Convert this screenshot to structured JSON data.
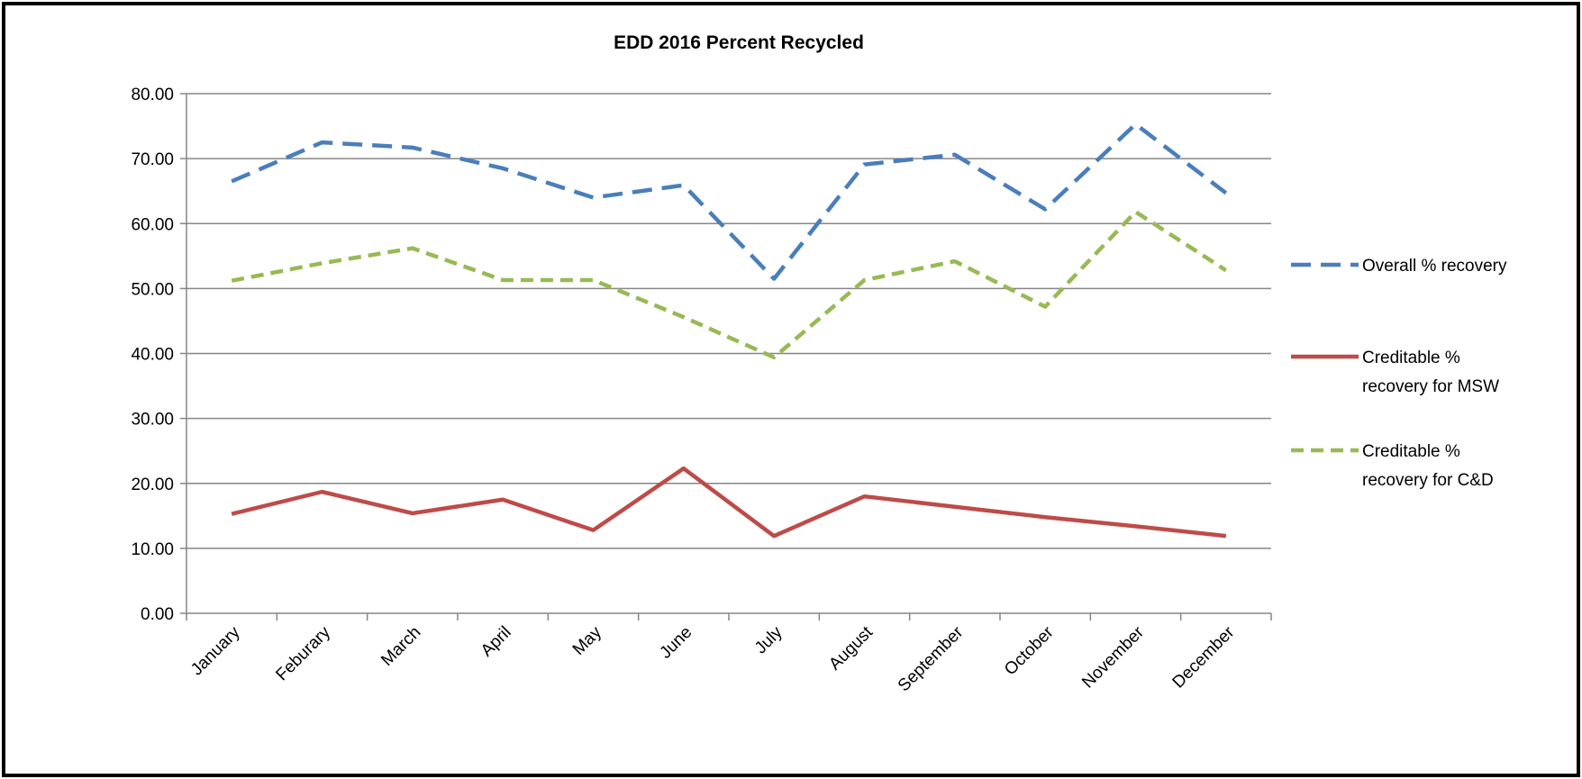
{
  "chart_data": {
    "type": "line",
    "title": "EDD 2016 Percent Recycled",
    "xlabel": "",
    "ylabel": "",
    "categories": [
      "January",
      "Feburary",
      "March",
      "April",
      "May",
      "June",
      "July",
      "August",
      "September",
      "October",
      "November",
      "December"
    ],
    "ylim": [
      0,
      80
    ],
    "yticks": [
      "0.00",
      "10.00",
      "20.00",
      "30.00",
      "40.00",
      "50.00",
      "60.00",
      "70.00",
      "80.00"
    ],
    "grid": true,
    "legend_position": "right",
    "series": [
      {
        "name": "Overall % recovery",
        "legend_lines": [
          "Overall % recovery"
        ],
        "color": "#4a7ebb",
        "style": "dashed",
        "values": [
          66.5,
          72.5,
          71.7,
          68.5,
          64.0,
          65.9,
          51.5,
          69.1,
          70.6,
          62.2,
          75.3,
          64.7
        ]
      },
      {
        "name": "Creditable % recovery for MSW",
        "legend_lines": [
          "Creditable %",
          "recovery for MSW"
        ],
        "color": "#be4b48",
        "style": "solid",
        "values": [
          15.3,
          18.7,
          15.4,
          17.5,
          12.8,
          22.3,
          11.9,
          18.0,
          16.4,
          14.8,
          13.4,
          11.9
        ]
      },
      {
        "name": "Creditable % recovery for C&D",
        "legend_lines": [
          "Creditable %",
          "recovery for C&D"
        ],
        "color": "#98b954",
        "style": "dashed",
        "values": [
          51.2,
          53.9,
          56.2,
          51.3,
          51.3,
          45.6,
          39.4,
          51.3,
          54.2,
          47.2,
          61.8,
          52.8
        ]
      }
    ]
  }
}
